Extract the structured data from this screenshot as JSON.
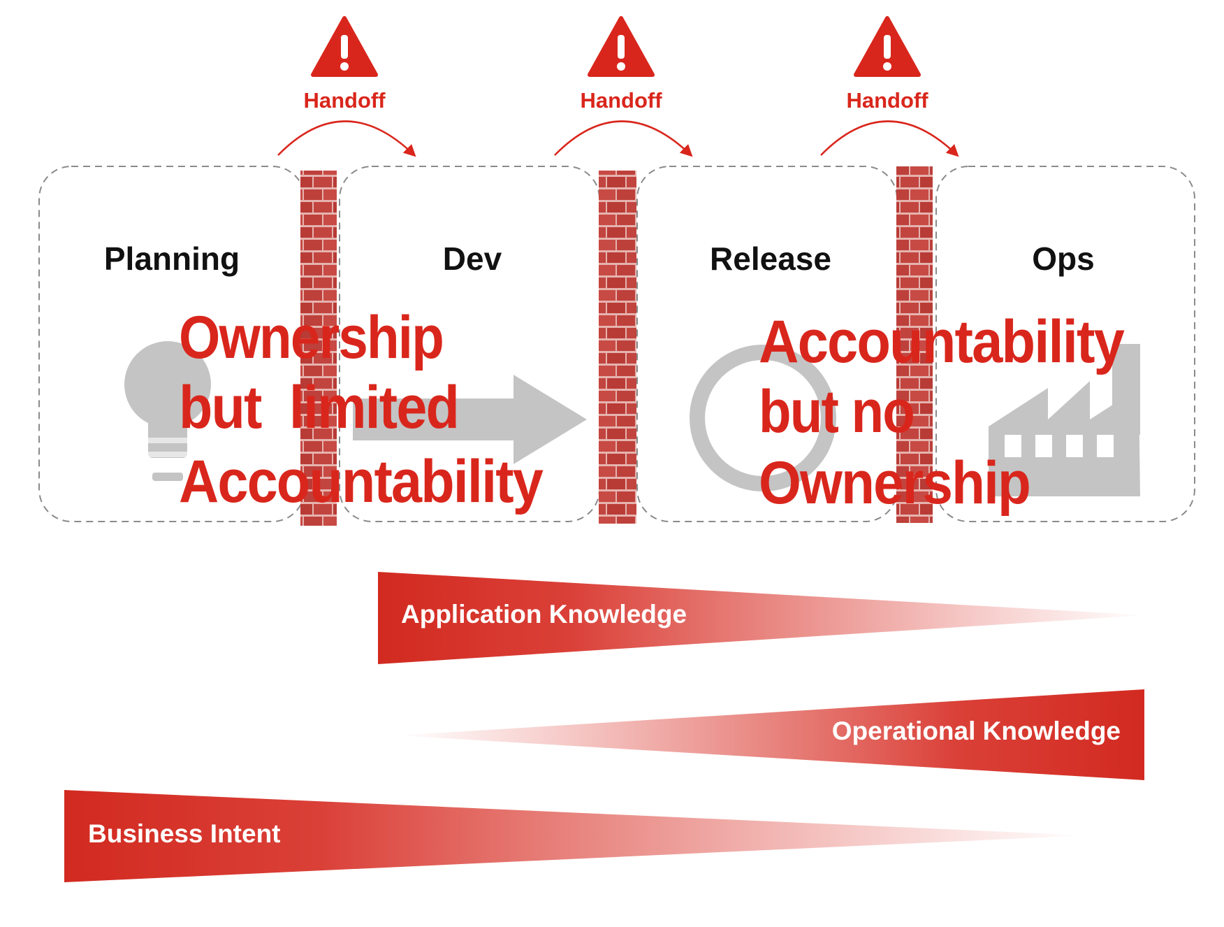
{
  "colors": {
    "accent_red": "#d9261c",
    "brick_red": "#c2443f",
    "mortar": "#e8b8b4",
    "icon_gray": "#c4c4c4",
    "dashed_border": "#8a8a8a",
    "label_black": "#111111"
  },
  "stages": [
    {
      "label": "Planning",
      "icon": "lightbulb-icon"
    },
    {
      "label": "Dev",
      "icon": "arrow-right-icon"
    },
    {
      "label": "Release",
      "icon": "cycle-ring-icon"
    },
    {
      "label": "Ops",
      "icon": "factory-icon"
    }
  ],
  "handoffs": [
    {
      "label": "Handoff",
      "icon": "warning-icon"
    },
    {
      "label": "Handoff",
      "icon": "warning-icon"
    },
    {
      "label": "Handoff",
      "icon": "warning-icon"
    }
  ],
  "walls": [
    {
      "icon": "brick-wall-icon"
    },
    {
      "icon": "brick-wall-icon"
    },
    {
      "icon": "brick-wall-icon"
    }
  ],
  "callouts": {
    "left": [
      "Ownership",
      "but  limited",
      "Accountability"
    ],
    "right": [
      "Accountability",
      "but no",
      "Ownership"
    ]
  },
  "knowledge_bars": [
    {
      "label": "Application Knowledge",
      "direction": "tapers-right"
    },
    {
      "label": "Operational Knowledge",
      "direction": "tapers-left"
    },
    {
      "label": "Business Intent",
      "direction": "tapers-right"
    }
  ]
}
